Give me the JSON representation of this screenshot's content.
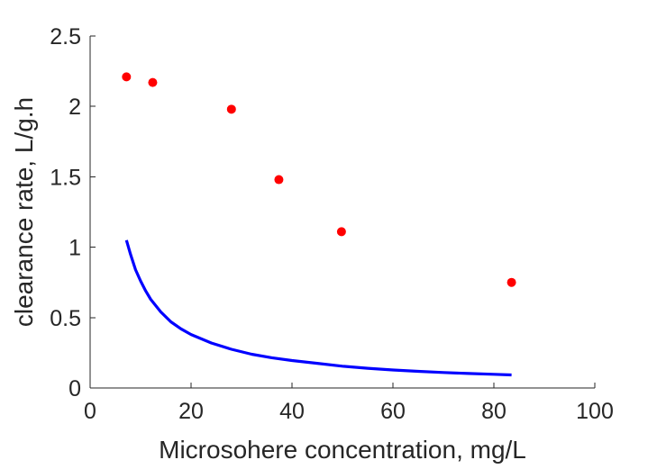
{
  "chart_data": {
    "type": "scatter",
    "title": "",
    "xlabel": "Microsohere concentration, mg/L",
    "ylabel": "clearance rate, L/g.h",
    "xlim": [
      0,
      100
    ],
    "ylim": [
      0,
      2.5
    ],
    "xticks": [
      0,
      20,
      40,
      60,
      80,
      100
    ],
    "xtick_labels": [
      "0",
      "20",
      "40",
      "60",
      "80",
      "100"
    ],
    "yticks": [
      0,
      0.5,
      1,
      1.5,
      2,
      2.5
    ],
    "ytick_labels": [
      "0",
      "0.5",
      "1",
      "1.5",
      "2",
      "2.5"
    ],
    "grid": false,
    "legend": "none",
    "series": [
      {
        "type": "scatter",
        "color": "#ff0000",
        "marker": "filled-circle",
        "x": [
          7.2,
          12.4,
          28.0,
          37.4,
          49.8,
          83.5
        ],
        "y": [
          2.21,
          2.17,
          1.98,
          1.48,
          1.11,
          0.75
        ]
      },
      {
        "type": "line",
        "color": "#0000ff",
        "x": [
          7.2,
          8,
          9,
          10,
          11,
          12,
          14,
          16,
          18,
          20,
          24,
          28,
          32,
          36,
          40,
          45,
          50,
          55,
          60,
          65,
          70,
          75,
          80,
          83.5
        ],
        "y": [
          1.05,
          0.95,
          0.84,
          0.76,
          0.69,
          0.63,
          0.54,
          0.47,
          0.42,
          0.38,
          0.32,
          0.275,
          0.24,
          0.215,
          0.195,
          0.175,
          0.155,
          0.14,
          0.128,
          0.118,
          0.11,
          0.103,
          0.097,
          0.093
        ]
      }
    ]
  }
}
